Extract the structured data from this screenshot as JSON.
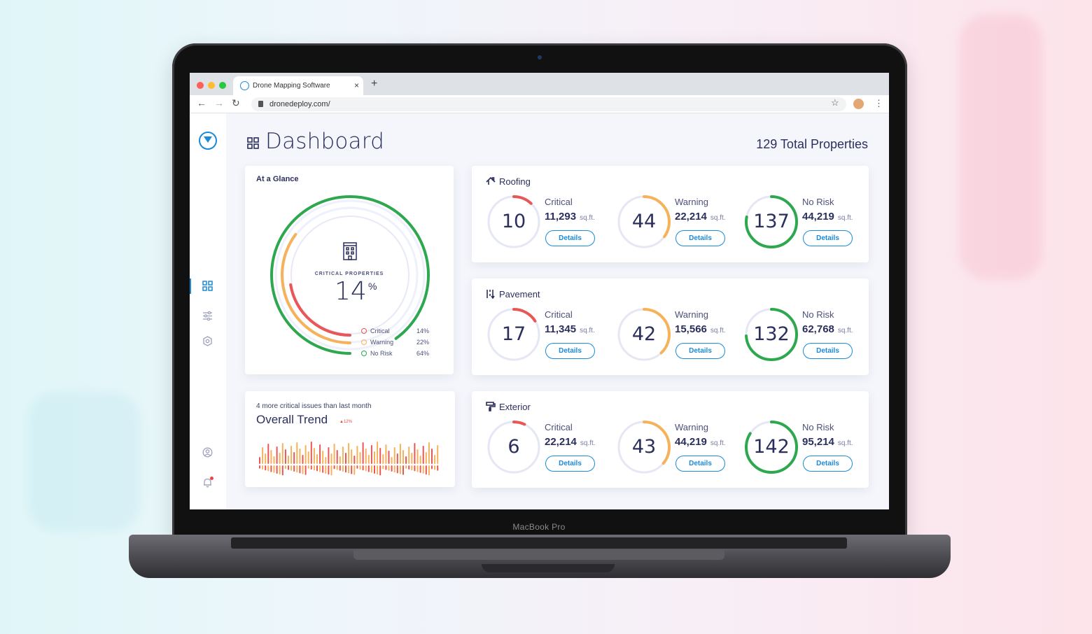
{
  "device": {
    "label": "MacBook Pro"
  },
  "browser": {
    "tab_title": "Drone Mapping Software",
    "new_tab": "+",
    "tab_close": "×",
    "url": "dronedeploy.com/",
    "traffic_colors": [
      "#fe5f57",
      "#febc2e",
      "#28c840"
    ]
  },
  "header": {
    "title": "Dashboard",
    "total_properties": "129 Total Properties"
  },
  "sidebar": {
    "items": [
      {
        "icon": "dashboard-icon",
        "active": true
      },
      {
        "icon": "sliders-icon",
        "active": false
      },
      {
        "icon": "settings-icon",
        "active": false
      },
      {
        "icon": "user-icon",
        "active": false
      },
      {
        "icon": "bell-icon",
        "active": false
      }
    ]
  },
  "glance": {
    "title": "At a Glance",
    "center_label": "CRITICAL PROPERTIES",
    "center_value": "14",
    "center_unit": "%",
    "legend": [
      {
        "label": "Critical",
        "value": "14%",
        "fraction": 0.14,
        "color": "#e85656"
      },
      {
        "label": "Warning",
        "value": "22%",
        "fraction": 0.22,
        "color": "#f5b25b"
      },
      {
        "label": "No Risk",
        "value": "64%",
        "fraction": 0.64,
        "color": "#2ea84f"
      }
    ]
  },
  "trend": {
    "subtitle": "4 more critical issues than last month",
    "title": "Overall Trend",
    "badge": "▲12%"
  },
  "colors": {
    "accent": "#1b8ad8",
    "critical": "#e85656",
    "warning": "#f5b25b",
    "norisk": "#2ea84f",
    "text": "#2b2f5d"
  },
  "categories": [
    {
      "name": "Roofing",
      "icon": "roof-icon",
      "stats": [
        {
          "level": "Critical",
          "count": "10",
          "area": "11,293",
          "unit": "sq.ft.",
          "fraction": 0.12,
          "button": "Details"
        },
        {
          "level": "Warning",
          "count": "44",
          "area": "22,214",
          "unit": "sq.ft.",
          "fraction": 0.35,
          "button": "Details"
        },
        {
          "level": "No Risk",
          "count": "137",
          "area": "44,219",
          "unit": "sq.ft.",
          "fraction": 0.78,
          "button": "Details"
        }
      ]
    },
    {
      "name": "Pavement",
      "icon": "pavement-icon",
      "stats": [
        {
          "level": "Critical",
          "count": "17",
          "area": "11,345",
          "unit": "sq.ft.",
          "fraction": 0.16,
          "button": "Details"
        },
        {
          "level": "Warning",
          "count": "42",
          "area": "15,566",
          "unit": "sq.ft.",
          "fraction": 0.38,
          "button": "Details"
        },
        {
          "level": "No Risk",
          "count": "132",
          "area": "62,768",
          "unit": "sq.ft.",
          "fraction": 0.74,
          "button": "Details"
        }
      ]
    },
    {
      "name": "Exterior",
      "icon": "paint-roller-icon",
      "stats": [
        {
          "level": "Critical",
          "count": "6",
          "area": "22,214",
          "unit": "sq.ft.",
          "fraction": 0.07,
          "button": "Details"
        },
        {
          "level": "Warning",
          "count": "43",
          "area": "44,219",
          "unit": "sq.ft.",
          "fraction": 0.36,
          "button": "Details"
        },
        {
          "level": "No Risk",
          "count": "142",
          "area": "95,214",
          "unit": "sq.ft.",
          "fraction": 0.84,
          "button": "Details"
        }
      ]
    }
  ]
}
